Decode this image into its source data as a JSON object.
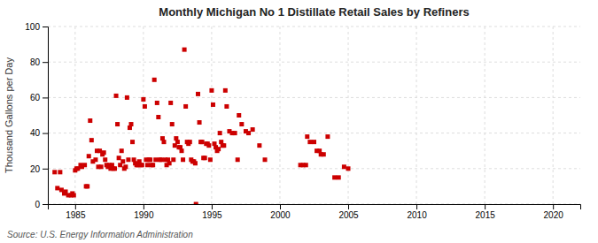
{
  "chart_data": {
    "type": "scatter",
    "title": "Monthly Michigan No 1 Distillate Retail Sales by Refiners",
    "ylabel": "Thousand Gallons per Day",
    "source": "Source: U.S. Energy Information Administration",
    "color": "#cc0000",
    "marker": "square",
    "grid": true,
    "xlim": [
      1983,
      2022
    ],
    "ylim": [
      0,
      100
    ],
    "xticks": [
      1985,
      1990,
      1995,
      2000,
      2005,
      2010,
      2015,
      2020
    ],
    "yticks": [
      0,
      20,
      40,
      60,
      80,
      100
    ],
    "x": [
      1983.5,
      1983.7,
      1983.9,
      1984.0,
      1984.2,
      1984.3,
      1984.5,
      1984.7,
      1984.8,
      1984.9,
      1985.0,
      1985.1,
      1985.2,
      1985.4,
      1985.5,
      1985.7,
      1985.8,
      1985.9,
      1986.0,
      1986.1,
      1986.2,
      1986.3,
      1986.5,
      1986.6,
      1986.7,
      1986.8,
      1986.9,
      1987.0,
      1987.1,
      1987.2,
      1987.3,
      1987.4,
      1987.5,
      1987.6,
      1987.7,
      1987.8,
      1987.9,
      1988.0,
      1988.1,
      1988.2,
      1988.3,
      1988.4,
      1988.5,
      1988.6,
      1988.7,
      1988.8,
      1988.9,
      1989.0,
      1989.1,
      1989.2,
      1989.3,
      1989.4,
      1989.5,
      1989.6,
      1989.7,
      1989.8,
      1989.9,
      1990.0,
      1990.1,
      1990.2,
      1990.3,
      1990.4,
      1990.5,
      1990.6,
      1990.7,
      1990.8,
      1990.9,
      1991.0,
      1991.1,
      1991.2,
      1991.3,
      1991.4,
      1991.5,
      1991.6,
      1991.7,
      1991.8,
      1991.9,
      1992.0,
      1992.1,
      1992.2,
      1992.3,
      1992.4,
      1992.5,
      1992.6,
      1992.7,
      1992.8,
      1992.9,
      1993.0,
      1993.1,
      1993.2,
      1993.3,
      1993.4,
      1993.5,
      1993.6,
      1993.7,
      1993.8,
      1993.85,
      1994.0,
      1994.1,
      1994.2,
      1994.3,
      1994.4,
      1994.5,
      1994.6,
      1994.7,
      1994.8,
      1994.9,
      1995.0,
      1995.1,
      1995.2,
      1995.3,
      1995.4,
      1995.5,
      1995.6,
      1995.7,
      1995.8,
      1995.9,
      1996.0,
      1996.1,
      1996.3,
      1996.5,
      1996.7,
      1996.9,
      1997.0,
      1997.2,
      1997.5,
      1997.7,
      1998.0,
      1998.5,
      1998.9,
      2001.5,
      2001.7,
      2001.9,
      2002.0,
      2002.2,
      2002.5,
      2002.7,
      2002.9,
      2003.0,
      2003.2,
      2003.5,
      2004.0,
      2004.3,
      2004.7,
      2005.0
    ],
    "y": [
      18,
      9,
      18,
      8,
      6,
      7,
      5,
      5,
      6,
      5,
      19,
      20,
      20,
      22,
      21,
      22,
      10,
      10,
      27,
      47,
      36,
      24,
      25,
      30,
      21,
      30,
      21,
      28,
      29,
      25,
      22,
      21,
      22,
      20,
      22,
      20,
      20,
      61,
      45,
      26,
      22,
      30,
      24,
      20,
      21,
      60,
      25,
      43,
      45,
      35,
      25,
      23,
      22,
      22,
      24,
      22,
      22,
      59,
      55,
      25,
      22,
      25,
      25,
      22,
      22,
      70,
      25,
      57,
      49,
      25,
      25,
      37,
      35,
      25,
      22,
      25,
      23,
      57,
      45,
      25,
      33,
      37,
      35,
      32,
      32,
      30,
      25,
      87,
      55,
      35,
      34,
      35,
      25,
      24,
      24,
      23,
      0,
      62,
      46,
      35,
      35,
      26,
      26,
      34,
      34,
      33,
      25,
      64,
      56,
      34,
      32,
      30,
      31,
      40,
      35,
      33,
      33,
      64,
      55,
      41,
      40,
      40,
      25,
      50,
      45,
      41,
      40,
      42,
      33,
      25,
      22,
      22,
      22,
      38,
      35,
      35,
      30,
      30,
      28,
      28,
      38,
      15,
      15,
      21,
      20
    ]
  }
}
